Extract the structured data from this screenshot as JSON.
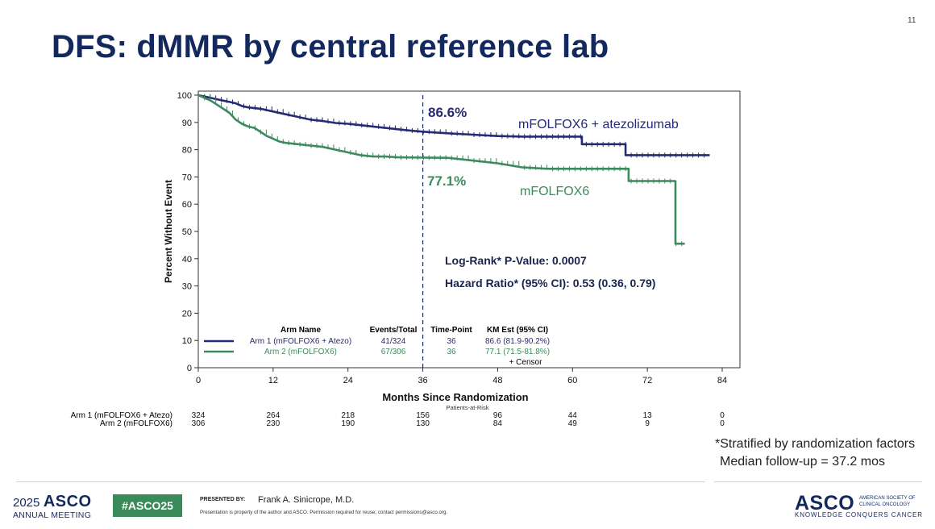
{
  "slide": {
    "number": "11",
    "title": "DFS: dMMR by central reference lab"
  },
  "chart_data": {
    "type": "line",
    "subtype": "kaplan-meier",
    "ylabel": "Percent Without Event",
    "xlabel": "Months Since Randomization",
    "xlim": [
      0,
      84
    ],
    "ylim": [
      0,
      100
    ],
    "xticks": [
      0,
      12,
      24,
      36,
      48,
      60,
      72,
      84
    ],
    "yticks": [
      0,
      10,
      20,
      30,
      40,
      50,
      60,
      70,
      80,
      90,
      100
    ],
    "grid": false,
    "reference_line_x": 36,
    "series": [
      {
        "name": "mFOLFOX6 + atezolizumab",
        "color": "#262a72",
        "points": [
          [
            0,
            100
          ],
          [
            1,
            99.5
          ],
          [
            2,
            99
          ],
          [
            3,
            98.5
          ],
          [
            4,
            98
          ],
          [
            5,
            97.5
          ],
          [
            6,
            97
          ],
          [
            7,
            96
          ],
          [
            8,
            95.5
          ],
          [
            10,
            95
          ],
          [
            12,
            94
          ],
          [
            14,
            93
          ],
          [
            16,
            92
          ],
          [
            18,
            91
          ],
          [
            20,
            90.5
          ],
          [
            22,
            89.8
          ],
          [
            24,
            89.5
          ],
          [
            26,
            89
          ],
          [
            28,
            88.5
          ],
          [
            30,
            88
          ],
          [
            32,
            87.5
          ],
          [
            34,
            87
          ],
          [
            36,
            86.6
          ],
          [
            40,
            86
          ],
          [
            44,
            85.5
          ],
          [
            48,
            85
          ],
          [
            52,
            84.8
          ],
          [
            56,
            84.8
          ],
          [
            60,
            84.8
          ],
          [
            61.5,
            84.8
          ],
          [
            61.5,
            82
          ],
          [
            68,
            82
          ],
          [
            68.5,
            82
          ],
          [
            68.5,
            78
          ],
          [
            72,
            78
          ],
          [
            76,
            78
          ],
          [
            82,
            78
          ]
        ],
        "end_label": "86.6%",
        "series_label": "mFOLFOX6 + atezolizumab"
      },
      {
        "name": "mFOLFOX6",
        "color": "#3c8a5e",
        "points": [
          [
            0,
            100
          ],
          [
            1,
            99
          ],
          [
            2,
            98
          ],
          [
            3,
            96.5
          ],
          [
            4,
            95
          ],
          [
            5,
            93.5
          ],
          [
            6,
            91
          ],
          [
            7,
            89.5
          ],
          [
            8,
            88.5
          ],
          [
            9,
            88
          ],
          [
            10,
            86.5
          ],
          [
            11,
            85
          ],
          [
            12,
            84
          ],
          [
            13,
            83
          ],
          [
            14,
            82.5
          ],
          [
            16,
            82
          ],
          [
            18,
            81.5
          ],
          [
            20,
            81
          ],
          [
            22,
            80
          ],
          [
            24,
            79
          ],
          [
            26,
            78
          ],
          [
            28,
            77.5
          ],
          [
            30,
            77.5
          ],
          [
            32,
            77.2
          ],
          [
            36,
            77.1
          ],
          [
            40,
            77
          ],
          [
            44,
            76
          ],
          [
            48,
            75
          ],
          [
            52,
            73.5
          ],
          [
            56,
            73
          ],
          [
            60,
            73
          ],
          [
            64,
            73
          ],
          [
            69,
            73
          ],
          [
            69,
            68.5
          ],
          [
            72,
            68.5
          ],
          [
            76,
            68.5
          ],
          [
            76.5,
            68.5
          ],
          [
            76.5,
            45.5
          ],
          [
            78,
            45.5
          ]
        ],
        "end_label": "77.1%",
        "series_label": "mFOLFOX6"
      }
    ],
    "annotations": [
      "Log-Rank* P-Value: 0.0007",
      "Hazard Ratio* (95% CI): 0.53 (0.36, 0.79)"
    ],
    "legend_table": {
      "headers": [
        "Arm Name",
        "Events/Total",
        "Time-Point",
        "KM Est (95% CI)"
      ],
      "rows": [
        [
          "Arm 1 (mFOLFOX6 + Atezo)",
          "41/324",
          "36",
          "86.6 (81.9-90.2%)"
        ],
        [
          "Arm 2 (mFOLFOX6)",
          "67/306",
          "36",
          "77.1 (71.5-81.8%)"
        ]
      ],
      "censor_label": "+ Censor"
    },
    "at_risk": {
      "title": "Patients-at-Risk",
      "rows": [
        {
          "label": "Arm 1 (mFOLFOX6 + Atezo)",
          "values": [
            "324",
            "264",
            "218",
            "156",
            "96",
            "44",
            "13",
            "0"
          ]
        },
        {
          "label": "Arm 2 (mFOLFOX6)",
          "values": [
            "306",
            "230",
            "190",
            "130",
            "84",
            "49",
            "9",
            "0"
          ]
        }
      ]
    }
  },
  "footnotes": {
    "line1": "*Stratified by randomization factors",
    "line2": "Median follow-up = 37.2 mos"
  },
  "footer": {
    "meeting_year": "2025",
    "meeting_brand": "ASCO",
    "meeting_sub": "ANNUAL MEETING",
    "hashtag": "#ASCO25",
    "presented_by": "PRESENTED BY:",
    "presenter": "Frank A. Sinicrope, M.D.",
    "disclaimer": "Presentation is property of the author and ASCO. Permission required for reuse; contact permissions@asco.org.",
    "logo": "ASCO",
    "logo_society": "AMERICAN SOCIETY OF CLINICAL ONCOLOGY",
    "tagline": "KNOWLEDGE CONQUERS CANCER"
  }
}
